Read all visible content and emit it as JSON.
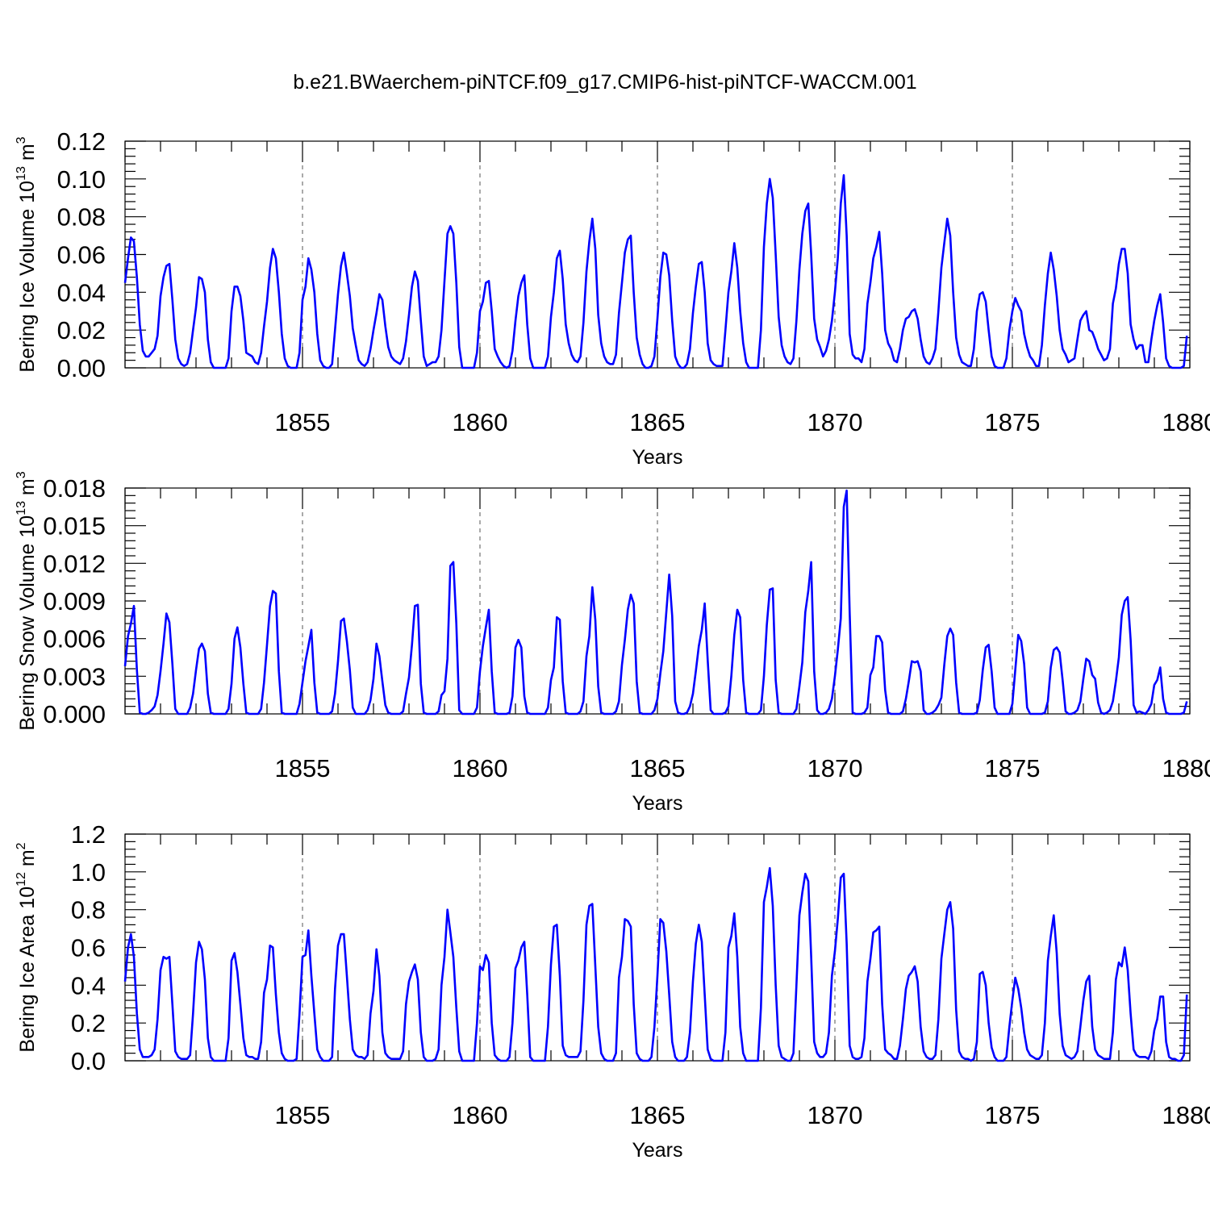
{
  "title": "b.e21.BWaerchem-piNTCF.f09_g17.CMIP6-hist-piNTCF-WACCM.001",
  "colors": {
    "series": "#0000ff",
    "axes": "#000000",
    "grid": "#555555"
  },
  "chart_data": [
    {
      "type": "line",
      "id": "ice-volume",
      "ylabel_main": "Bering Ice Volume 10",
      "ylabel_exp": "13",
      "ylabel_unit": " m",
      "ylabel_unit_exp": "3",
      "xlabel": "Years",
      "xlim": [
        1850,
        1880
      ],
      "ylim": [
        0,
        0.12
      ],
      "x_ticks": [
        1855,
        1860,
        1865,
        1870,
        1875,
        1880
      ],
      "y_ticks": [
        0.0,
        0.02,
        0.04,
        0.06,
        0.08,
        0.1,
        0.12
      ],
      "y_tick_labels": [
        "0.00",
        "0.02",
        "0.04",
        "0.06",
        "0.08",
        "0.10",
        "0.12"
      ],
      "grid_x": [
        1855,
        1860,
        1865,
        1870,
        1875
      ],
      "x_start": 1850.0,
      "x_step": 0.08333,
      "values": [
        0.045,
        0.058,
        0.069,
        0.067,
        0.048,
        0.023,
        0.009,
        0.006,
        0.006,
        0.008,
        0.01,
        0.017,
        0.038,
        0.048,
        0.054,
        0.055,
        0.036,
        0.015,
        0.005,
        0.002,
        0.001,
        0.002,
        0.008,
        0.02,
        0.032,
        0.048,
        0.047,
        0.04,
        0.015,
        0.003,
        0.0,
        0.0,
        0.0,
        0.0,
        0.0,
        0.005,
        0.03,
        0.043,
        0.043,
        0.038,
        0.025,
        0.008,
        0.007,
        0.006,
        0.003,
        0.002,
        0.008,
        0.022,
        0.035,
        0.053,
        0.063,
        0.058,
        0.04,
        0.018,
        0.005,
        0.001,
        0.0,
        0.0,
        0.0,
        0.008,
        0.036,
        0.043,
        0.058,
        0.052,
        0.04,
        0.018,
        0.004,
        0.001,
        0.0,
        0.0,
        0.002,
        0.02,
        0.039,
        0.054,
        0.061,
        0.05,
        0.038,
        0.021,
        0.012,
        0.004,
        0.002,
        0.001,
        0.003,
        0.01,
        0.02,
        0.029,
        0.039,
        0.036,
        0.022,
        0.011,
        0.006,
        0.004,
        0.003,
        0.002,
        0.005,
        0.014,
        0.028,
        0.043,
        0.051,
        0.046,
        0.025,
        0.006,
        0.001,
        0.002,
        0.003,
        0.003,
        0.006,
        0.02,
        0.046,
        0.071,
        0.075,
        0.071,
        0.045,
        0.011,
        0.0,
        0.0,
        0.0,
        0.0,
        0.0,
        0.008,
        0.03,
        0.035,
        0.045,
        0.046,
        0.03,
        0.01,
        0.006,
        0.003,
        0.001,
        0.0,
        0.001,
        0.009,
        0.025,
        0.038,
        0.045,
        0.049,
        0.023,
        0.005,
        0.0,
        0.0,
        0.0,
        0.0,
        0.0,
        0.006,
        0.027,
        0.04,
        0.058,
        0.062,
        0.047,
        0.023,
        0.013,
        0.007,
        0.004,
        0.003,
        0.006,
        0.024,
        0.051,
        0.067,
        0.079,
        0.063,
        0.028,
        0.013,
        0.006,
        0.003,
        0.002,
        0.002,
        0.007,
        0.029,
        0.045,
        0.061,
        0.068,
        0.07,
        0.04,
        0.016,
        0.007,
        0.002,
        0.0,
        0.0,
        0.001,
        0.006,
        0.026,
        0.048,
        0.061,
        0.06,
        0.049,
        0.025,
        0.006,
        0.002,
        0.0,
        0.0,
        0.002,
        0.01,
        0.029,
        0.043,
        0.055,
        0.056,
        0.04,
        0.013,
        0.004,
        0.002,
        0.001,
        0.001,
        0.001,
        0.02,
        0.04,
        0.051,
        0.066,
        0.053,
        0.03,
        0.013,
        0.003,
        0.0,
        0.0,
        0.0,
        0.0,
        0.02,
        0.064,
        0.087,
        0.1,
        0.09,
        0.06,
        0.027,
        0.012,
        0.006,
        0.003,
        0.002,
        0.005,
        0.025,
        0.052,
        0.071,
        0.083,
        0.087,
        0.06,
        0.026,
        0.015,
        0.011,
        0.006,
        0.009,
        0.015,
        0.025,
        0.04,
        0.058,
        0.087,
        0.102,
        0.07,
        0.018,
        0.007,
        0.005,
        0.005,
        0.003,
        0.01,
        0.034,
        0.045,
        0.058,
        0.064,
        0.072,
        0.05,
        0.02,
        0.013,
        0.01,
        0.004,
        0.003,
        0.01,
        0.02,
        0.026,
        0.027,
        0.03,
        0.031,
        0.026,
        0.015,
        0.006,
        0.003,
        0.002,
        0.005,
        0.01,
        0.03,
        0.053,
        0.066,
        0.079,
        0.07,
        0.04,
        0.016,
        0.007,
        0.003,
        0.002,
        0.001,
        0.001,
        0.01,
        0.03,
        0.039,
        0.04,
        0.035,
        0.02,
        0.006,
        0.001,
        0.0,
        0.0,
        0.0,
        0.005,
        0.02,
        0.03,
        0.037,
        0.033,
        0.03,
        0.018,
        0.011,
        0.006,
        0.004,
        0.001,
        0.001,
        0.012,
        0.033,
        0.05,
        0.061,
        0.052,
        0.038,
        0.02,
        0.01,
        0.007,
        0.003,
        0.004,
        0.005,
        0.015,
        0.025,
        0.028,
        0.03,
        0.02,
        0.019,
        0.015,
        0.01,
        0.007,
        0.004,
        0.005,
        0.01,
        0.034,
        0.042,
        0.055,
        0.063,
        0.063,
        0.05,
        0.023,
        0.015,
        0.01,
        0.012,
        0.012,
        0.003,
        0.003,
        0.015,
        0.025,
        0.033,
        0.039,
        0.024,
        0.005,
        0.001,
        0.0,
        0.0,
        0.0,
        0.0,
        0.001,
        0.017
      ]
    },
    {
      "type": "line",
      "id": "snow-volume",
      "ylabel_main": "Bering Snow Volume 10",
      "ylabel_exp": "13",
      "ylabel_unit": " m",
      "ylabel_unit_exp": "3",
      "xlabel": "Years",
      "xlim": [
        1850,
        1880
      ],
      "ylim": [
        0,
        0.018
      ],
      "x_ticks": [
        1855,
        1860,
        1865,
        1870,
        1875,
        1880
      ],
      "y_ticks": [
        0.0,
        0.003,
        0.006,
        0.009,
        0.012,
        0.015,
        0.018
      ],
      "y_tick_labels": [
        "0.000",
        "0.003",
        "0.006",
        "0.009",
        "0.012",
        "0.015",
        "0.018"
      ],
      "grid_x": [
        1855,
        1860,
        1865,
        1870,
        1875
      ],
      "x_start": 1850.0,
      "x_step": 0.08333,
      "values": [
        0.0038,
        0.0062,
        0.0072,
        0.0086,
        0.0035,
        0.0001,
        0.0,
        0.0,
        0.0001,
        0.0003,
        0.0006,
        0.0015,
        0.0034,
        0.0056,
        0.008,
        0.0073,
        0.004,
        0.0004,
        0.0,
        0.0,
        0.0,
        0.0,
        0.0005,
        0.0016,
        0.0035,
        0.0052,
        0.0056,
        0.005,
        0.0016,
        0.0001,
        0.0,
        0.0,
        0.0,
        0.0,
        0.0,
        0.0004,
        0.0024,
        0.006,
        0.0069,
        0.0053,
        0.0024,
        0.0001,
        0.0,
        0.0,
        0.0,
        0.0,
        0.0004,
        0.0025,
        0.0055,
        0.0086,
        0.0098,
        0.0096,
        0.0034,
        0.0001,
        0.0,
        0.0,
        0.0,
        0.0,
        0.0,
        0.0008,
        0.0025,
        0.0042,
        0.0054,
        0.0067,
        0.0025,
        0.0001,
        0.0,
        0.0,
        0.0,
        0.0,
        0.0002,
        0.0016,
        0.0042,
        0.0074,
        0.0076,
        0.0058,
        0.0035,
        0.0005,
        0.0,
        0.0,
        0.0,
        0.0,
        0.0003,
        0.0011,
        0.0028,
        0.0056,
        0.0046,
        0.0026,
        0.0007,
        0.0001,
        0.0,
        0.0,
        0.0,
        0.0,
        0.0002,
        0.0016,
        0.0029,
        0.0055,
        0.0086,
        0.0087,
        0.0024,
        0.0001,
        0.0,
        0.0,
        0.0,
        0.0,
        0.0002,
        0.0015,
        0.0018,
        0.0044,
        0.0118,
        0.0121,
        0.0072,
        0.0003,
        0.0,
        0.0,
        0.0,
        0.0,
        0.0,
        0.0005,
        0.0034,
        0.0054,
        0.0069,
        0.0083,
        0.0034,
        0.0001,
        0.0,
        0.0,
        0.0,
        0.0,
        0.0001,
        0.0014,
        0.0053,
        0.0059,
        0.0053,
        0.0014,
        0.0001,
        0.0,
        0.0,
        0.0,
        0.0,
        0.0,
        0.0,
        0.0005,
        0.0027,
        0.0037,
        0.0077,
        0.0075,
        0.0026,
        0.0001,
        0.0,
        0.0,
        0.0,
        0.0,
        0.0002,
        0.001,
        0.0046,
        0.0062,
        0.0101,
        0.0075,
        0.0022,
        0.0001,
        0.0,
        0.0,
        0.0,
        0.0,
        0.0002,
        0.001,
        0.0039,
        0.0059,
        0.0083,
        0.0095,
        0.0088,
        0.0026,
        0.0001,
        0.0,
        0.0,
        0.0,
        0.0,
        0.0003,
        0.0012,
        0.0032,
        0.005,
        0.0081,
        0.0111,
        0.0078,
        0.001,
        0.0001,
        0.0,
        0.0,
        0.0001,
        0.0006,
        0.0016,
        0.0034,
        0.0054,
        0.0067,
        0.0088,
        0.0043,
        0.0003,
        0.0,
        0.0,
        0.0,
        0.0,
        0.0001,
        0.0006,
        0.003,
        0.0063,
        0.0083,
        0.0077,
        0.0027,
        0.0001,
        0.0,
        0.0,
        0.0,
        0.0,
        0.0003,
        0.003,
        0.0071,
        0.0099,
        0.01,
        0.0027,
        0.0001,
        0.0,
        0.0,
        0.0,
        0.0,
        0.0,
        0.0004,
        0.0022,
        0.0041,
        0.0081,
        0.0098,
        0.0121,
        0.0034,
        0.0003,
        0.0,
        0.0,
        0.0001,
        0.0004,
        0.0012,
        0.003,
        0.0051,
        0.0076,
        0.0165,
        0.0178,
        0.0081,
        0.0001,
        0.0,
        0.0,
        0.0,
        0.0001,
        0.0005,
        0.0031,
        0.0037,
        0.0062,
        0.0062,
        0.0057,
        0.0019,
        0.0001,
        0.0,
        0.0,
        0.0,
        0.0,
        0.0002,
        0.0012,
        0.0026,
        0.0042,
        0.0041,
        0.0042,
        0.0034,
        0.0003,
        0.0,
        0.0,
        0.0001,
        0.0003,
        0.0007,
        0.0013,
        0.0039,
        0.0062,
        0.0068,
        0.0063,
        0.0025,
        0.0001,
        0.0,
        0.0,
        0.0,
        0.0,
        0.0,
        0.0001,
        0.0011,
        0.0035,
        0.0053,
        0.0055,
        0.0034,
        0.0005,
        0.0,
        0.0,
        0.0,
        0.0,
        0.0,
        0.0008,
        0.0035,
        0.0063,
        0.0058,
        0.004,
        0.0005,
        0.0,
        0.0,
        0.0,
        0.0,
        0.0,
        0.0001,
        0.001,
        0.0037,
        0.0051,
        0.0053,
        0.0049,
        0.0027,
        0.0002,
        0.0,
        0.0,
        0.0001,
        0.0003,
        0.001,
        0.0028,
        0.0044,
        0.0042,
        0.0031,
        0.0028,
        0.0009,
        0.0001,
        0.0,
        0.0001,
        0.0003,
        0.001,
        0.0026,
        0.0045,
        0.0079,
        0.009,
        0.0093,
        0.0059,
        0.0007,
        0.0001,
        0.0002,
        0.0001,
        0.0,
        0.0003,
        0.0008,
        0.0023,
        0.0027,
        0.0037,
        0.0012,
        0.0001,
        0.0,
        0.0,
        0.0,
        0.0,
        0.0,
        0.0001,
        0.001
      ]
    },
    {
      "type": "line",
      "id": "ice-area",
      "ylabel_main": "Bering Ice Area 10",
      "ylabel_exp": "12",
      "ylabel_unit": " m",
      "ylabel_unit_exp": "2",
      "xlabel": "Years",
      "xlim": [
        1850,
        1880
      ],
      "ylim": [
        0,
        1.2
      ],
      "x_ticks": [
        1855,
        1860,
        1865,
        1870,
        1875,
        1880
      ],
      "y_ticks": [
        0.0,
        0.2,
        0.4,
        0.6,
        0.8,
        1.0,
        1.2
      ],
      "y_tick_labels": [
        "0.0",
        "0.2",
        "0.4",
        "0.6",
        "0.8",
        "1.0",
        "1.2"
      ],
      "grid_x": [
        1855,
        1860,
        1865,
        1870,
        1875
      ],
      "x_start": 1850.0,
      "x_step": 0.08333,
      "values": [
        0.42,
        0.6,
        0.67,
        0.55,
        0.25,
        0.06,
        0.02,
        0.02,
        0.02,
        0.03,
        0.06,
        0.22,
        0.48,
        0.55,
        0.54,
        0.55,
        0.3,
        0.05,
        0.02,
        0.01,
        0.01,
        0.01,
        0.03,
        0.25,
        0.52,
        0.63,
        0.59,
        0.43,
        0.12,
        0.02,
        0.0,
        0.0,
        0.0,
        0.0,
        0.0,
        0.12,
        0.53,
        0.57,
        0.47,
        0.3,
        0.12,
        0.03,
        0.02,
        0.02,
        0.01,
        0.01,
        0.1,
        0.36,
        0.43,
        0.61,
        0.6,
        0.35,
        0.15,
        0.04,
        0.01,
        0.0,
        0.0,
        0.0,
        0.01,
        0.25,
        0.55,
        0.56,
        0.69,
        0.45,
        0.25,
        0.06,
        0.02,
        0.0,
        0.0,
        0.0,
        0.02,
        0.38,
        0.61,
        0.67,
        0.67,
        0.45,
        0.22,
        0.06,
        0.03,
        0.02,
        0.02,
        0.01,
        0.03,
        0.25,
        0.37,
        0.59,
        0.45,
        0.15,
        0.04,
        0.02,
        0.01,
        0.01,
        0.01,
        0.01,
        0.05,
        0.3,
        0.42,
        0.47,
        0.51,
        0.43,
        0.15,
        0.02,
        0.0,
        0.0,
        0.0,
        0.01,
        0.06,
        0.4,
        0.55,
        0.8,
        0.68,
        0.55,
        0.28,
        0.05,
        0.0,
        0.0,
        0.0,
        0.0,
        0.0,
        0.2,
        0.5,
        0.48,
        0.56,
        0.52,
        0.2,
        0.03,
        0.01,
        0.0,
        0.0,
        0.0,
        0.02,
        0.2,
        0.49,
        0.53,
        0.6,
        0.63,
        0.35,
        0.02,
        0.0,
        0.0,
        0.0,
        0.0,
        0.0,
        0.18,
        0.51,
        0.71,
        0.72,
        0.45,
        0.08,
        0.03,
        0.02,
        0.02,
        0.02,
        0.02,
        0.05,
        0.32,
        0.72,
        0.82,
        0.83,
        0.5,
        0.18,
        0.04,
        0.01,
        0.0,
        0.0,
        0.0,
        0.04,
        0.44,
        0.55,
        0.75,
        0.74,
        0.71,
        0.3,
        0.04,
        0.01,
        0.0,
        0.0,
        0.0,
        0.02,
        0.18,
        0.45,
        0.75,
        0.73,
        0.58,
        0.35,
        0.1,
        0.02,
        0.0,
        0.0,
        0.0,
        0.02,
        0.15,
        0.42,
        0.62,
        0.72,
        0.63,
        0.35,
        0.06,
        0.01,
        0.0,
        0.0,
        0.0,
        0.0,
        0.15,
        0.6,
        0.66,
        0.78,
        0.55,
        0.18,
        0.04,
        0.0,
        0.0,
        0.0,
        0.0,
        0.0,
        0.28,
        0.84,
        0.92,
        1.02,
        0.82,
        0.4,
        0.08,
        0.02,
        0.01,
        0.0,
        0.0,
        0.04,
        0.4,
        0.77,
        0.89,
        0.99,
        0.95,
        0.55,
        0.1,
        0.04,
        0.02,
        0.02,
        0.04,
        0.15,
        0.45,
        0.58,
        0.75,
        0.97,
        0.99,
        0.62,
        0.08,
        0.02,
        0.01,
        0.01,
        0.02,
        0.12,
        0.42,
        0.54,
        0.68,
        0.69,
        0.71,
        0.3,
        0.06,
        0.04,
        0.03,
        0.01,
        0.01,
        0.08,
        0.22,
        0.38,
        0.45,
        0.47,
        0.5,
        0.42,
        0.18,
        0.05,
        0.02,
        0.01,
        0.01,
        0.03,
        0.22,
        0.54,
        0.67,
        0.8,
        0.84,
        0.7,
        0.27,
        0.05,
        0.02,
        0.01,
        0.01,
        0.0,
        0.01,
        0.1,
        0.46,
        0.47,
        0.4,
        0.2,
        0.07,
        0.02,
        0.0,
        0.0,
        0.0,
        0.02,
        0.18,
        0.32,
        0.44,
        0.38,
        0.28,
        0.15,
        0.06,
        0.03,
        0.02,
        0.01,
        0.01,
        0.03,
        0.2,
        0.53,
        0.66,
        0.77,
        0.57,
        0.25,
        0.08,
        0.03,
        0.02,
        0.01,
        0.02,
        0.05,
        0.18,
        0.32,
        0.42,
        0.45,
        0.18,
        0.06,
        0.03,
        0.02,
        0.01,
        0.01,
        0.01,
        0.15,
        0.43,
        0.52,
        0.5,
        0.6,
        0.48,
        0.25,
        0.06,
        0.03,
        0.02,
        0.02,
        0.02,
        0.01,
        0.05,
        0.16,
        0.22,
        0.34,
        0.34,
        0.1,
        0.02,
        0.01,
        0.01,
        0.0,
        0.0,
        0.03,
        0.35
      ]
    }
  ]
}
